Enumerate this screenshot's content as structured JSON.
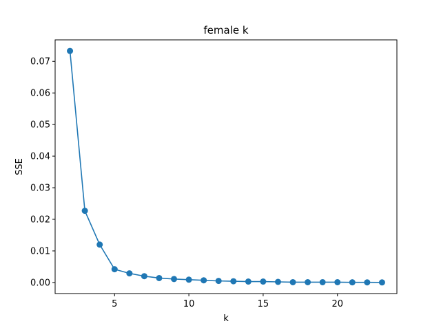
{
  "chart_data": {
    "type": "line",
    "title": "female k",
    "xlabel": "k",
    "ylabel": "SSE",
    "xlim": [
      1.0,
      24.0
    ],
    "ylim": [
      -0.0035,
      0.0768
    ],
    "xticks": [
      5,
      10,
      15,
      20
    ],
    "xtick_labels": [
      "5",
      "10",
      "15",
      "20"
    ],
    "yticks": [
      0.0,
      0.01,
      0.02,
      0.03,
      0.04,
      0.05,
      0.06,
      0.07
    ],
    "ytick_labels": [
      "0.00",
      "0.01",
      "0.02",
      "0.03",
      "0.04",
      "0.05",
      "0.06",
      "0.07"
    ],
    "grid": false,
    "colors": {
      "series": "#1f77b4"
    },
    "series": [
      {
        "x": [
          2,
          3,
          4,
          5,
          6,
          7,
          8,
          9,
          10,
          11,
          12,
          13,
          14,
          15,
          16,
          17,
          18,
          19,
          20,
          21,
          22,
          23
        ],
        "values": [
          0.0733,
          0.0227,
          0.012,
          0.0042,
          0.0029,
          0.002,
          0.0014,
          0.0011,
          0.0009,
          0.0007,
          0.0005,
          0.0004,
          0.0003,
          0.0003,
          0.0002,
          0.0001,
          0.0001,
          0.0001,
          0.0001,
          5e-05,
          4e-05,
          3e-05
        ],
        "marker": "circle"
      }
    ]
  }
}
